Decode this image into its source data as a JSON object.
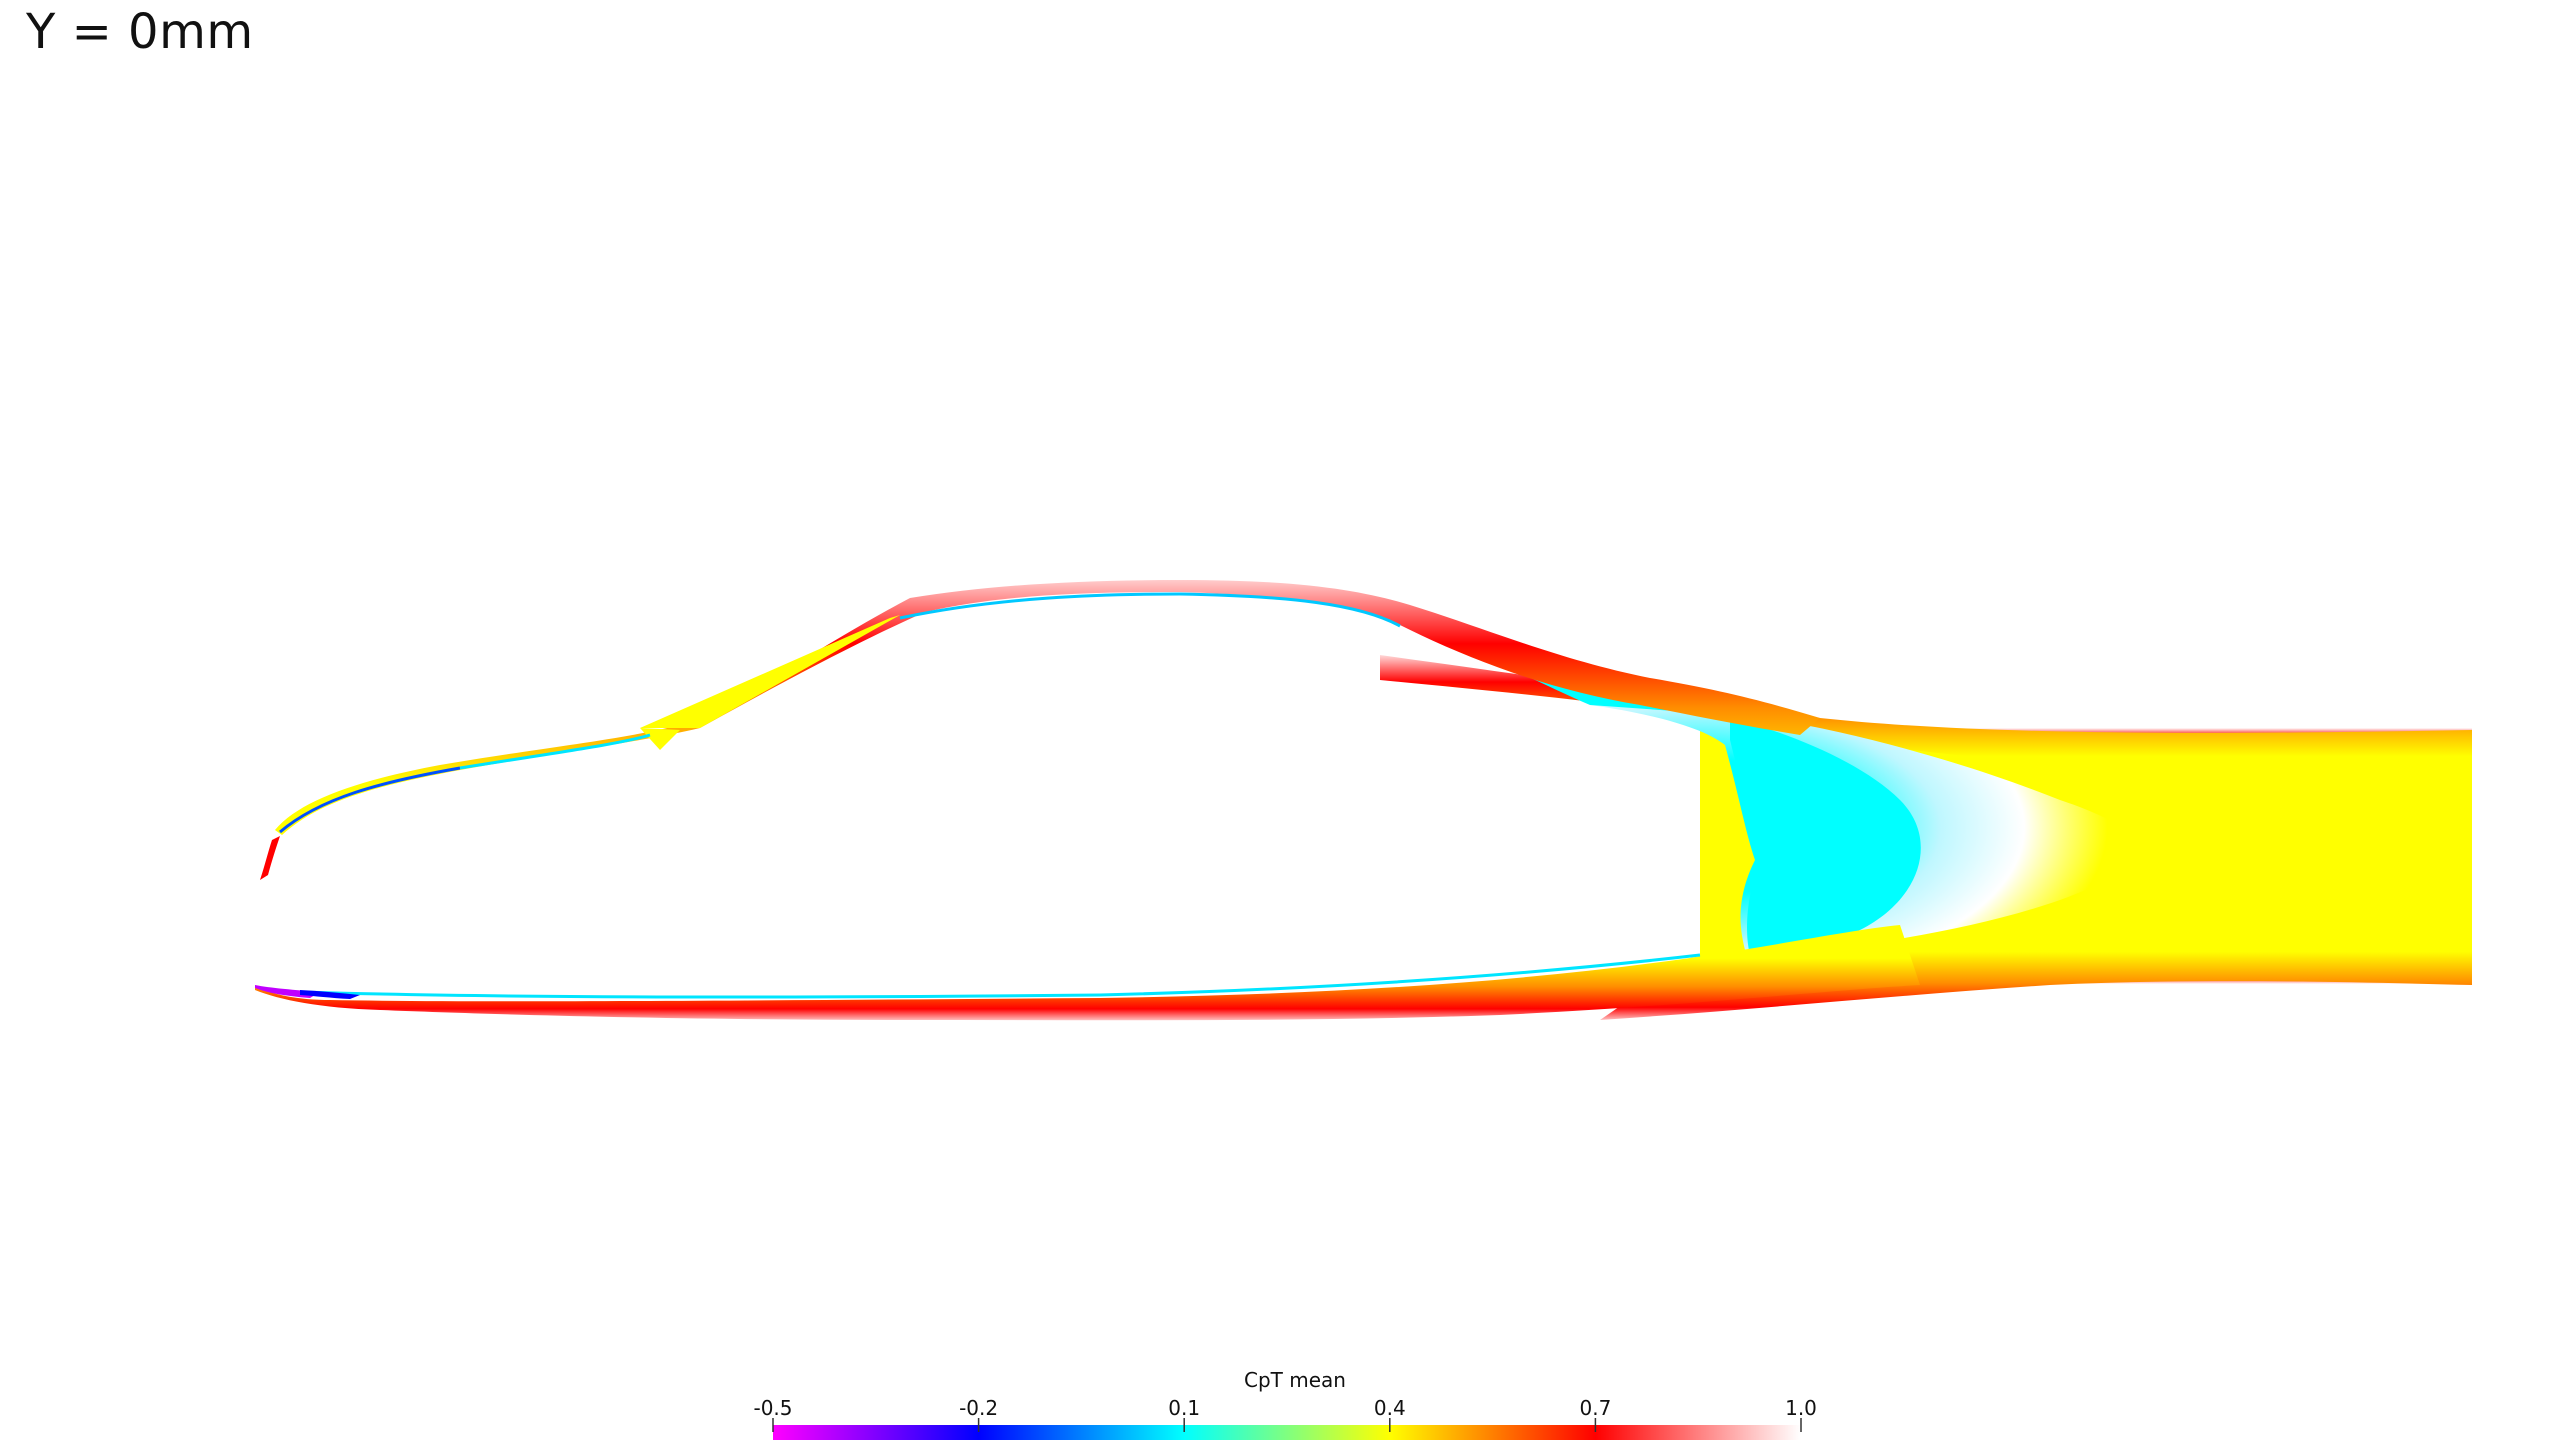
{
  "view": {
    "title": "Y = 0mm"
  },
  "colorbar": {
    "title": "CpT mean",
    "range": [
      -0.5,
      1.0
    ],
    "ticks": [
      {
        "value": -0.5,
        "label": "-0.5"
      },
      {
        "value": -0.2,
        "label": "-0.2"
      },
      {
        "value": 0.1,
        "label": "0.1"
      },
      {
        "value": 0.4,
        "label": "0.4"
      },
      {
        "value": 0.7,
        "label": "0.7"
      },
      {
        "value": 1.0,
        "label": "1.0"
      }
    ],
    "colors": [
      "#ff00ff",
      "#0000ff",
      "#00ffff",
      "#ffff00",
      "#ff0000",
      "#ffffff"
    ]
  },
  "palette": {
    "magenta": "#ff00ff",
    "blue": "#0000ff",
    "cyan": "#00ffff",
    "green": "#7fff7f",
    "yellow": "#ffff00",
    "orange": "#ff8c00",
    "red": "#ff0000",
    "background": "#ffffff"
  }
}
